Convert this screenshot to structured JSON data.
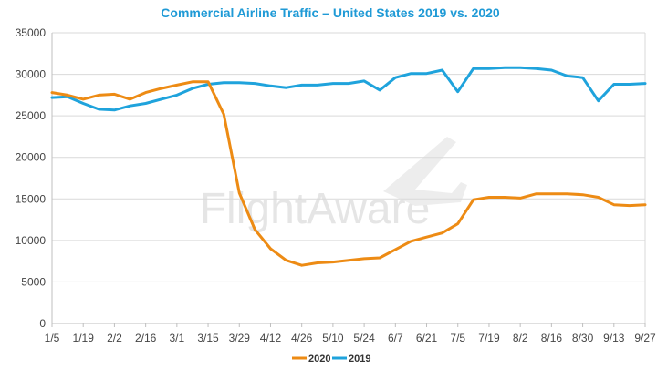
{
  "chart_data": {
    "type": "line",
    "title": "Commercial Airline Traffic – United States 2019 vs. 2020",
    "xlabel": "",
    "ylabel": "",
    "ylim": [
      0,
      35000
    ],
    "yticks": [
      0,
      5000,
      10000,
      15000,
      20000,
      25000,
      30000,
      35000
    ],
    "ytick_labels": [
      "0",
      "5000",
      "10000",
      "15000",
      "20000",
      "25000",
      "30000",
      "35000"
    ],
    "x_tick_labels": [
      "1/5",
      "1/19",
      "2/2",
      "2/16",
      "3/1",
      "3/15",
      "3/29",
      "4/12",
      "4/26",
      "5/10",
      "5/24",
      "6/7",
      "6/21",
      "7/5",
      "7/19",
      "8/2",
      "8/16",
      "8/30",
      "9/13",
      "9/27"
    ],
    "num_points": 39,
    "grid": "horizontal",
    "legend_position": "bottom-center",
    "watermark": "FlightAware",
    "series": [
      {
        "name": "2020",
        "color": "#ed8b14",
        "values": [
          27800,
          27500,
          27000,
          27500,
          27600,
          27000,
          27800,
          28300,
          28700,
          29100,
          29100,
          25200,
          15700,
          11300,
          9000,
          7600,
          7000,
          7300,
          7400,
          7600,
          7800,
          7900,
          8900,
          9900,
          10400,
          10900,
          12000,
          14900,
          15200,
          15200,
          15100,
          15600,
          15600,
          15600,
          15500,
          15200,
          14300,
          14200,
          14300
        ]
      },
      {
        "name": "2019",
        "color": "#1fa3dc",
        "values": [
          27200,
          27300,
          26500,
          25800,
          25700,
          26200,
          26500,
          27000,
          27500,
          28300,
          28800,
          29000,
          29000,
          28900,
          28600,
          28400,
          28700,
          28700,
          28900,
          28900,
          29200,
          28100,
          29600,
          30100,
          30100,
          30500,
          27900,
          30700,
          30700,
          30800,
          30800,
          30700,
          30500,
          29800,
          29600,
          26800,
          28800,
          28800,
          28900
        ]
      }
    ]
  }
}
